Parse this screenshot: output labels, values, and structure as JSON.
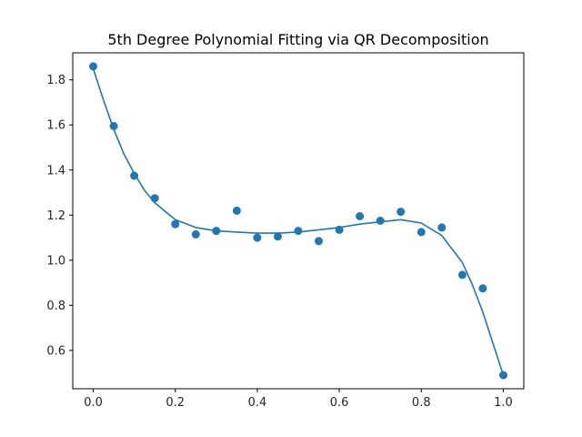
{
  "chart_data": {
    "type": "scatter",
    "title": "5th Degree Polynomial Fitting via QR Decomposition",
    "xlabel": "",
    "ylabel": "",
    "xlim": [
      -0.05,
      1.05
    ],
    "ylim": [
      0.43,
      1.92
    ],
    "x_ticks": [
      0.0,
      0.2,
      0.4,
      0.6,
      0.8,
      1.0
    ],
    "x_tick_labels": [
      "0.0",
      "0.2",
      "0.4",
      "0.6",
      "0.8",
      "1.0"
    ],
    "y_ticks": [
      0.6,
      0.8,
      1.0,
      1.2,
      1.4,
      1.6,
      1.8
    ],
    "y_tick_labels": [
      "0.6",
      "0.8",
      "1.0",
      "1.2",
      "1.4",
      "1.6",
      "1.8"
    ],
    "grid": false,
    "legend": "none",
    "colors": {
      "series": "#1f77b4",
      "axis": "#000000",
      "text": "#262626"
    },
    "series": [
      {
        "type": "scatter",
        "x": [
          0.0,
          0.05,
          0.1,
          0.15,
          0.2,
          0.25,
          0.3,
          0.35,
          0.4,
          0.45,
          0.5,
          0.55,
          0.6,
          0.65,
          0.7,
          0.75,
          0.8,
          0.85,
          0.9,
          0.95,
          1.0
        ],
        "y": [
          1.86,
          1.595,
          1.375,
          1.275,
          1.16,
          1.115,
          1.13,
          1.22,
          1.1,
          1.105,
          1.13,
          1.085,
          1.135,
          1.195,
          1.175,
          1.215,
          1.125,
          1.145,
          0.935,
          0.875,
          0.49
        ]
      },
      {
        "type": "line",
        "x": [
          0.0,
          0.025,
          0.05,
          0.075,
          0.1,
          0.125,
          0.15,
          0.2,
          0.25,
          0.3,
          0.35,
          0.4,
          0.45,
          0.5,
          0.55,
          0.6,
          0.65,
          0.7,
          0.75,
          0.8,
          0.85,
          0.9,
          0.925,
          0.95,
          0.975,
          1.0
        ],
        "y": [
          1.85,
          1.71,
          1.58,
          1.47,
          1.385,
          1.31,
          1.255,
          1.18,
          1.145,
          1.13,
          1.125,
          1.12,
          1.12,
          1.125,
          1.135,
          1.145,
          1.16,
          1.17,
          1.18,
          1.165,
          1.11,
          0.99,
          0.89,
          0.77,
          0.63,
          0.49
        ]
      }
    ]
  }
}
